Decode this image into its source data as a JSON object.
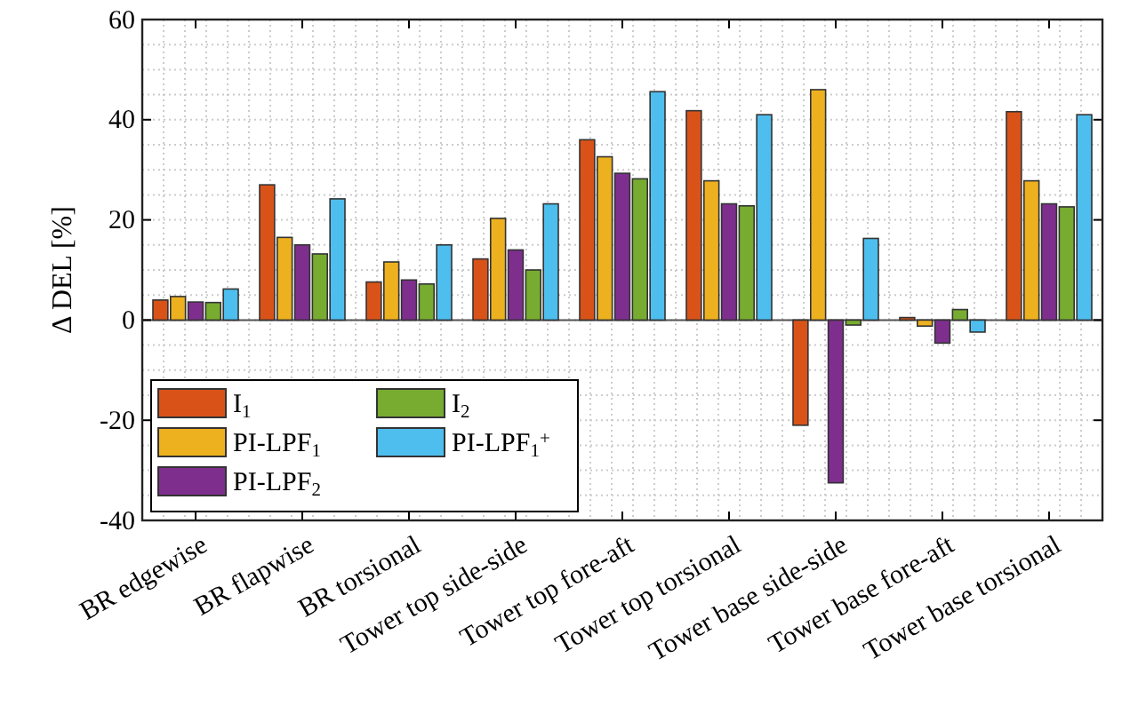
{
  "chart_data": {
    "type": "bar",
    "ylabel": "Δ DEL [%]",
    "categories": [
      "BR edgewise",
      "BR flapwise",
      "BR torsional",
      "Tower top side-side",
      "Tower top fore-aft",
      "Tower top torsional",
      "Tower base side-side",
      "Tower base fore-aft",
      "Tower base torsional"
    ],
    "series": [
      {
        "name": "I$_{1}$",
        "color": "#d95319",
        "values": [
          4,
          27,
          7.6,
          12.2,
          36,
          41.8,
          -21,
          0.5,
          41.6
        ]
      },
      {
        "name": "PI-LPF$_{1}$",
        "color": "#edb120",
        "values": [
          4.7,
          16.5,
          11.6,
          20.3,
          32.6,
          27.8,
          46,
          -1.2,
          27.8
        ]
      },
      {
        "name": "PI-LPF$_{2}$",
        "color": "#7e2f8e",
        "values": [
          3.6,
          15,
          8,
          14,
          29.3,
          23.2,
          -32.5,
          -4.6,
          23.2
        ]
      },
      {
        "name": "I$_{2}$",
        "color": "#77ac30",
        "values": [
          3.5,
          13.2,
          7.2,
          10,
          28.2,
          22.8,
          -1,
          2.1,
          22.6
        ]
      },
      {
        "name": "PI-LPF$_{1}$$^{+}$",
        "color": "#4dbeee",
        "values": [
          6.2,
          24.2,
          15,
          23.2,
          45.6,
          41,
          16.3,
          -2.4,
          41
        ]
      }
    ],
    "ylim": [
      -40,
      60
    ],
    "yticks": [
      -40,
      -20,
      0,
      20,
      40,
      60
    ],
    "grid": true,
    "legend": "bottom left"
  }
}
